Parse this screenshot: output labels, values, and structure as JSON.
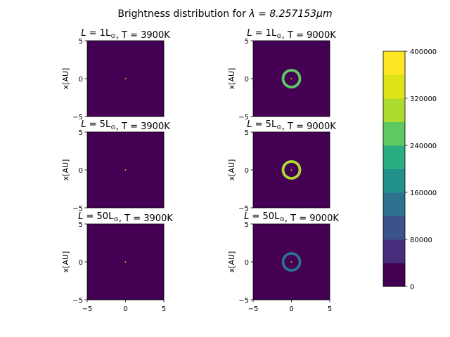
{
  "figure": {
    "suptitle_prefix": "Brightness distribution for ",
    "suptitle_math": "λ = 8.257153μm"
  },
  "chart_data": [
    {
      "type": "heatmap",
      "panel": "top-left",
      "title": "L=1L⊙,T=3900K",
      "title_L": "1",
      "title_T": "3900",
      "ylabel": "x[AU]",
      "xlim": [
        -5,
        5
      ],
      "ylim": [
        -5,
        5
      ],
      "yticks": [
        "-5",
        "0",
        "5"
      ],
      "background_level": 0,
      "center_value": 320000,
      "ring": null
    },
    {
      "type": "heatmap",
      "panel": "top-right",
      "title": "L=1L⊙,T=9000K",
      "title_L": "1",
      "title_T": "9000",
      "ylabel": "x[AU]",
      "xlim": [
        -5,
        5
      ],
      "ylim": [
        -5,
        5
      ],
      "yticks": [
        "-5",
        "0",
        "5"
      ],
      "background_level": 0,
      "center_value": 400000,
      "ring": {
        "radius_au": 1.1,
        "width_au": 0.35,
        "value": 240000
      }
    },
    {
      "type": "heatmap",
      "panel": "middle-left",
      "title": "L=5L⊙,T=3900K",
      "title_L": "5",
      "title_T": "3900",
      "ylabel": "x[AU]",
      "xlim": [
        -5,
        5
      ],
      "ylim": [
        -5,
        5
      ],
      "yticks": [
        "-5",
        "0",
        "5"
      ],
      "background_level": 0,
      "center_value": 320000,
      "ring": null
    },
    {
      "type": "heatmap",
      "panel": "middle-right",
      "title": "L=5L⊙,T=9000K",
      "title_L": "5",
      "title_T": "9000",
      "ylabel": "x[AU]",
      "xlim": [
        -5,
        5
      ],
      "ylim": [
        -5,
        5
      ],
      "yticks": [
        "-5",
        "0",
        "5"
      ],
      "background_level": 0,
      "center_value": 400000,
      "ring": {
        "radius_au": 1.1,
        "width_au": 0.35,
        "value": 300000
      }
    },
    {
      "type": "heatmap",
      "panel": "bottom-left",
      "title": "L=50L⊙,T=3900K",
      "title_L": "50",
      "title_T": "3900",
      "ylabel": "x[AU]",
      "xlim": [
        -5,
        5
      ],
      "ylim": [
        -5,
        5
      ],
      "yticks": [
        "-5",
        "0",
        "5"
      ],
      "xticks": [
        "-5",
        "0",
        "5"
      ],
      "background_level": 0,
      "center_value": 320000,
      "ring": null
    },
    {
      "type": "heatmap",
      "panel": "bottom-right",
      "title": "L=50L⊙,T=9000K",
      "title_L": "50",
      "title_T": "9000",
      "ylabel": "x[AU]",
      "xlim": [
        -5,
        5
      ],
      "ylim": [
        -5,
        5
      ],
      "yticks": [
        "-5",
        "0",
        "5"
      ],
      "xticks": [
        "-5",
        "0",
        "5"
      ],
      "background_level": 0,
      "center_value": 400000,
      "ring": {
        "radius_au": 1.1,
        "width_au": 0.35,
        "value": 140000
      }
    }
  ],
  "colorbar": {
    "levels": [
      0,
      40000,
      80000,
      120000,
      160000,
      200000,
      240000,
      280000,
      320000,
      360000,
      400000
    ],
    "colors": [
      "#440154",
      "#482475",
      "#414487",
      "#355f8d",
      "#2a788e",
      "#21918c",
      "#22a884",
      "#44bf70",
      "#7ad151",
      "#bddf26",
      "#fde725"
    ],
    "band_colors": [
      "#440154",
      "#472d7b",
      "#3b528b",
      "#2c728e",
      "#21918c",
      "#28ae80",
      "#5ec962",
      "#addc30",
      "#dde318",
      "#fde725"
    ],
    "tick_labels": [
      "0",
      "80000",
      "160000",
      "240000",
      "320000",
      "400000"
    ],
    "tick_values": [
      0,
      80000,
      160000,
      240000,
      320000,
      400000
    ]
  }
}
